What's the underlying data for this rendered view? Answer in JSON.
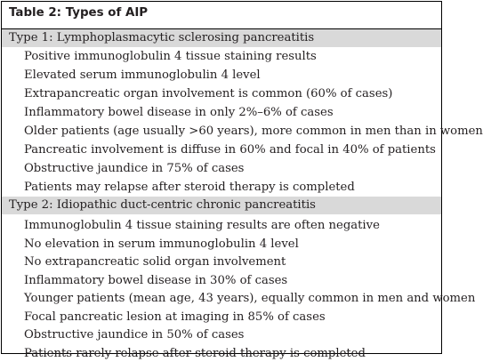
{
  "table": {
    "title": "Table 2: Types of AIP",
    "sections": [
      {
        "header": "Type 1: Lymphoplasmacytic sclerosing pancreatitis",
        "items": [
          "Positive immunoglobulin 4 tissue staining results",
          "Elevated serum immunoglobulin 4 level",
          "Extrapancreatic organ involvement is common (60% of cases)",
          "Inflammatory bowel disease in only 2%–6% of cases",
          "Older patients (age usually >60 years), more common in men than in women",
          "Pancreatic involvement is diffuse in 60% and focal in 40% of patients",
          "Obstructive jaundice in 75% of cases",
          "Patients may relapse after steroid therapy is completed"
        ]
      },
      {
        "header": "Type 2: Idiopathic duct-centric chronic pancreatitis",
        "items": [
          "Immunoglobulin 4 tissue staining results are often negative",
          "No elevation in serum immunoglobulin 4 level",
          "No extrapancreatic solid organ involvement",
          "Inflammatory bowel disease in 30% of cases",
          "Younger patients (mean age, 43 years), equally common in men and women",
          "Focal pancreatic lesion at imaging in 85% of cases",
          "Obstructive jaundice in 50% of cases",
          "Patients rarely relapse after steroid therapy is completed"
        ]
      }
    ]
  }
}
